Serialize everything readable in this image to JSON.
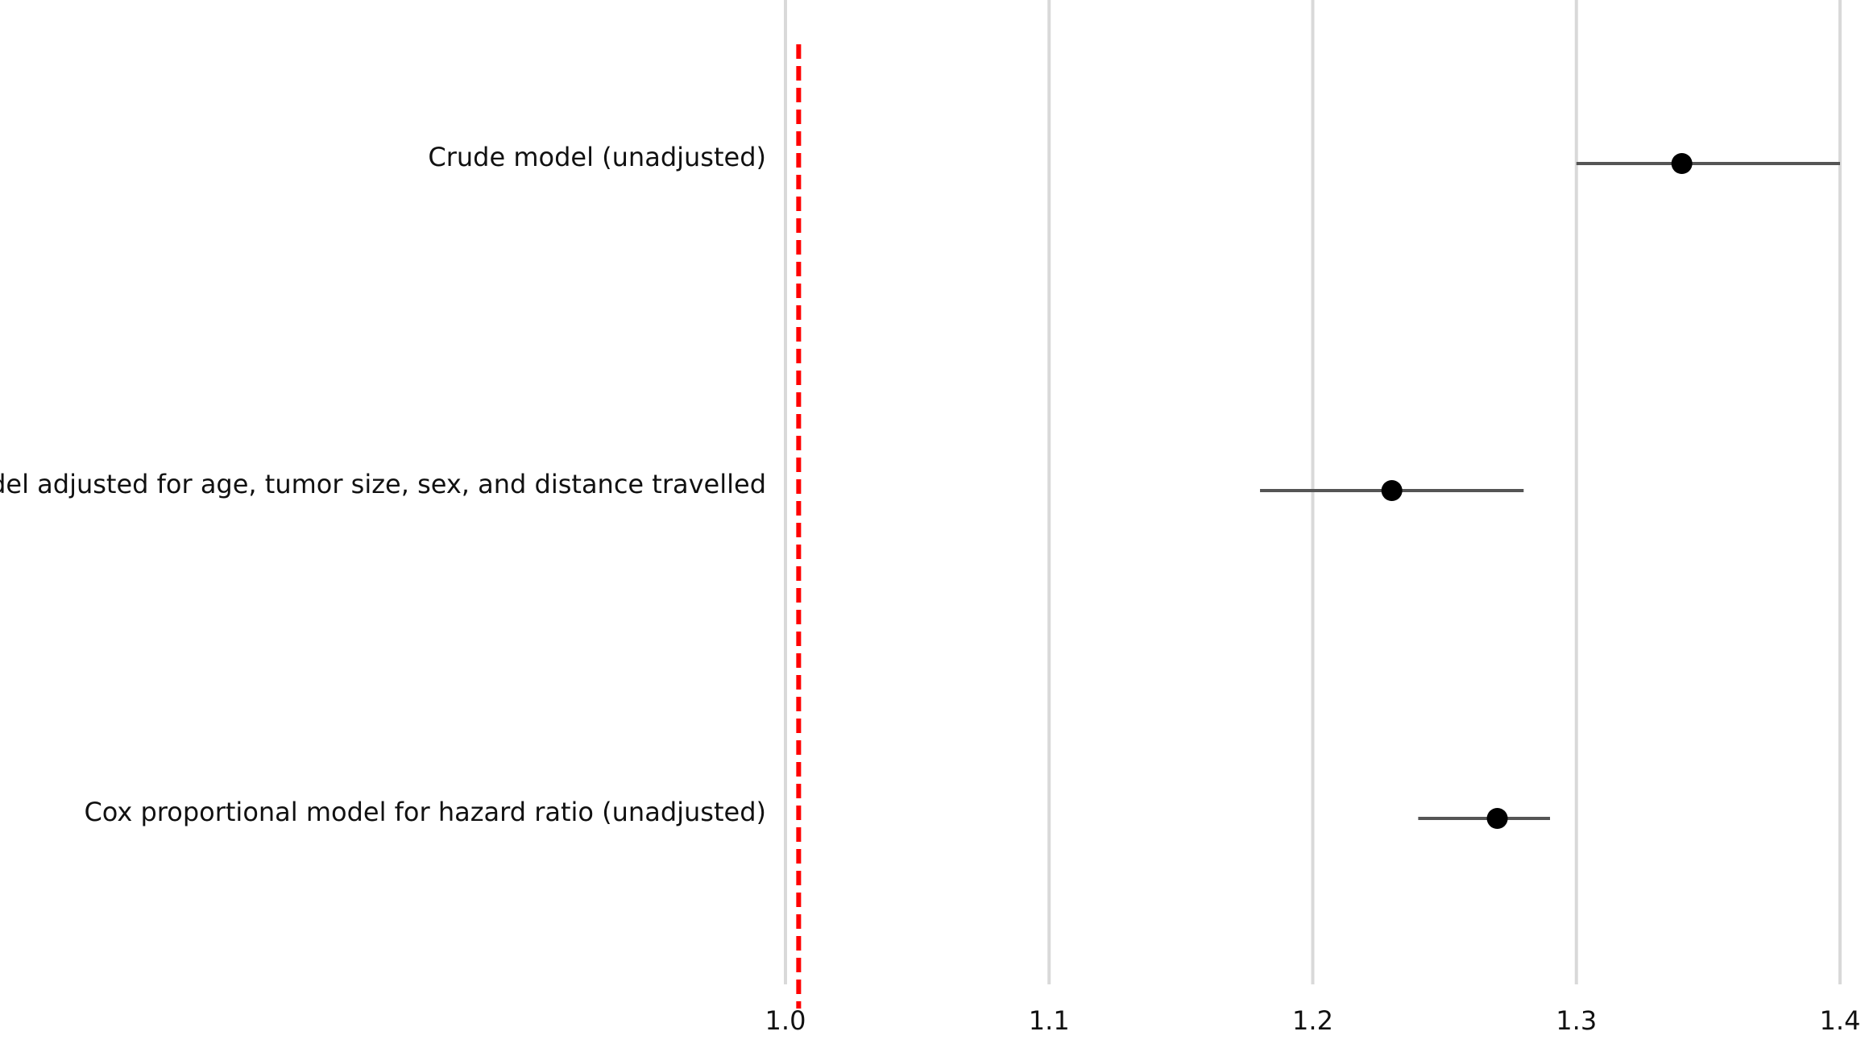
{
  "chart_data": {
    "type": "forest",
    "categories": [
      "Crude model (unadjusted)",
      "Model adjusted for age, tumor size, sex, and distance travelled",
      "Cox proportional model for hazard ratio (unadjusted)"
    ],
    "values": [
      1.34,
      1.23,
      1.27
    ],
    "lower": [
      1.3,
      1.18,
      1.24
    ],
    "upper": [
      1.4,
      1.28,
      1.29
    ],
    "color": "#000000",
    "ci_color": "#555555",
    "xlim": [
      1.0,
      1.4
    ],
    "xticks": [
      {
        "value": 1.0,
        "label": "1.0"
      },
      1.1,
      1.2,
      1.3,
      1.4
    ],
    "reference_line": 1.005,
    "reference_color": "#ff0000",
    "grid": true
  }
}
